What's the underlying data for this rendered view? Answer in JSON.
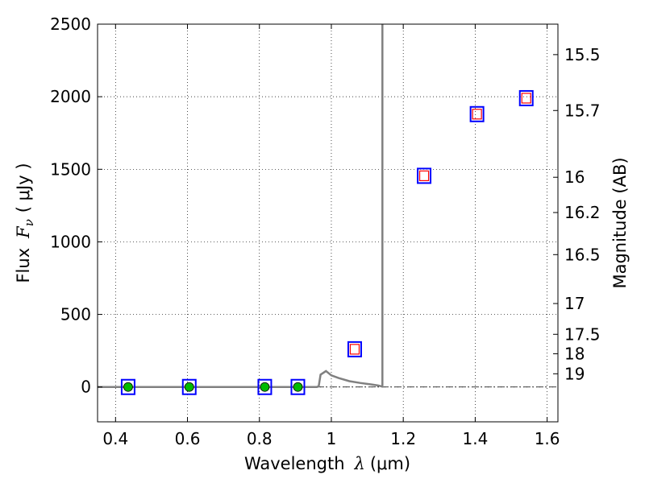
{
  "chart_data": {
    "type": "scatter",
    "xlabel_prefix": "Wavelength",
    "xlabel_symbol": "λ",
    "xlabel_unit": "(μm)",
    "ylabel_prefix": "Flux",
    "ylabel_symbol_main": "F",
    "ylabel_symbol_sub": "ν",
    "ylabel_unit": "( μJy )",
    "y2label": "Magnitude (AB)",
    "xlim": [
      0.35,
      1.63
    ],
    "ylim": [
      -240,
      2500
    ],
    "x_ticks": [
      0.4,
      0.6,
      0.8,
      1.0,
      1.2,
      1.4,
      1.6
    ],
    "x_tick_labels": [
      "0.4",
      "0.6",
      "0.8",
      "1",
      "1.2",
      "1.4",
      "1.6"
    ],
    "y_ticks": [
      0,
      500,
      1000,
      1500,
      2000,
      2500
    ],
    "y_tick_labels": [
      "0",
      "500",
      "1000",
      "1500",
      "2000",
      "2500"
    ],
    "y2_ticks": [
      {
        "label": "15.5",
        "flux": 2290
      },
      {
        "label": "15.7",
        "flux": 1905
      },
      {
        "label": "16",
        "flux": 1445
      },
      {
        "label": "16.2",
        "flux": 1202
      },
      {
        "label": "16.5",
        "flux": 912
      },
      {
        "label": "17",
        "flux": 575
      },
      {
        "label": "17.5",
        "flux": 363
      },
      {
        "label": "18",
        "flux": 229
      },
      {
        "label": "19",
        "flux": 91
      }
    ],
    "grid": true,
    "series": [
      {
        "kind": "model-line",
        "color": "#808080",
        "points": [
          [
            0.35,
            0
          ],
          [
            0.96,
            0
          ],
          [
            0.965,
            5
          ],
          [
            0.97,
            85
          ],
          [
            0.985,
            110
          ],
          [
            1.0,
            80
          ],
          [
            1.02,
            62
          ],
          [
            1.05,
            40
          ],
          [
            1.08,
            28
          ],
          [
            1.11,
            18
          ],
          [
            1.13,
            10
          ],
          [
            1.142,
            3
          ],
          [
            1.142,
            2600
          ]
        ]
      },
      {
        "kind": "observed-band",
        "marker": "blue-square",
        "color": "#0000ff",
        "x": [
          0.435,
          0.605,
          0.815,
          0.907,
          1.065,
          1.258,
          1.405,
          1.542
        ],
        "y": [
          0,
          0,
          0,
          0,
          260,
          1455,
          1880,
          1990
        ]
      },
      {
        "kind": "model-detection",
        "marker": "green-circle",
        "color": "#00bb00",
        "x": [
          0.435,
          0.605,
          0.815,
          0.907
        ],
        "y": [
          0,
          0,
          0,
          0
        ]
      },
      {
        "kind": "model-band",
        "marker": "red-square",
        "color": "#ff0000",
        "x": [
          1.065,
          1.258,
          1.405,
          1.542
        ],
        "y": [
          260,
          1455,
          1880,
          1990
        ]
      }
    ]
  }
}
